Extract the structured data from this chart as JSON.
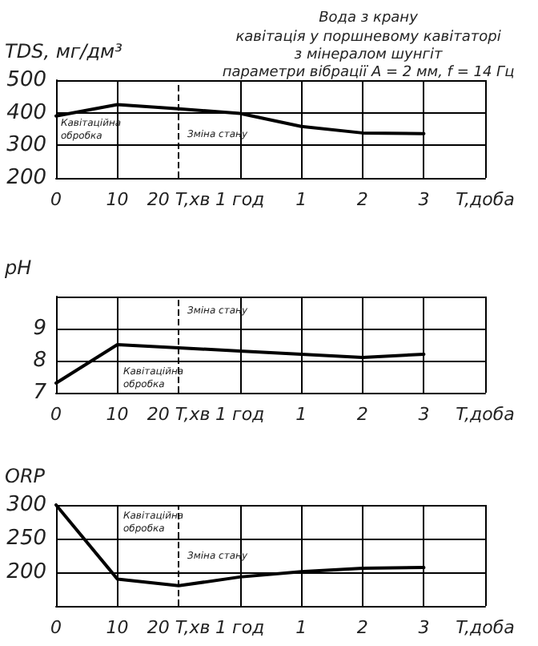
{
  "chart_data": [
    {
      "type": "line",
      "title": "Вода з крану",
      "subtitle": "кавітація у поршневому кавітаторі\nз мінералом шунгіт\nпараметри вібрації A = 2 мм, f = 14 Гц",
      "ylabel": "TDS, мг/дм³",
      "xlabel": "T,доба",
      "categories": [
        "0",
        "10",
        "20 T,хв",
        "1 год",
        "1",
        "2",
        "3",
        null
      ],
      "values": [
        390,
        425,
        412,
        398,
        358,
        338,
        336,
        null
      ],
      "color": "#000000",
      "marker": "none",
      "line_style": "solid",
      "ylim": [
        200,
        500
      ],
      "yticks": [
        200,
        300,
        400,
        500
      ],
      "grid": true,
      "ref_lines": [
        {
          "axis": "x",
          "value": "20 T,хв",
          "line_style": "dashed",
          "color": "#000000"
        }
      ],
      "annotations": [
        "Кавітаційна обробка",
        "Зміна стану"
      ]
    },
    {
      "type": "line",
      "ylabel": "pH",
      "xlabel": "T,доба",
      "categories": [
        "0",
        "10",
        "20 T,хв",
        "1 год",
        "1",
        "2",
        "3",
        null
      ],
      "values": [
        7.3,
        8.5,
        8.4,
        8.3,
        8.2,
        8.1,
        8.2,
        null
      ],
      "color": "#000000",
      "marker": "none",
      "line_style": "solid",
      "ylim": [
        7,
        10
      ],
      "yticks": [
        7,
        8,
        9
      ],
      "grid": true,
      "ref_lines": [
        {
          "axis": "x",
          "value": "20 T,хв",
          "line_style": "dashed",
          "color": "#000000"
        }
      ],
      "annotations": [
        "Зміна стану",
        "Кавітаційна обробка"
      ]
    },
    {
      "type": "line",
      "ylabel": "ORP",
      "xlabel": "T,доба",
      "categories": [
        "0",
        "10",
        "20 T,хв",
        "1 год",
        "1",
        "2",
        "3",
        null
      ],
      "values": [
        300,
        190,
        180,
        193,
        201,
        206,
        207,
        null
      ],
      "color": "#000000",
      "marker": "none",
      "line_style": "solid",
      "ylim": [
        150,
        300
      ],
      "yticks": [
        200,
        250,
        300
      ],
      "grid": true,
      "ref_lines": [
        {
          "axis": "x",
          "value": "20 T,хв",
          "line_style": "dashed",
          "color": "#000000"
        }
      ],
      "annotations": [
        "Кавітаційна обробка",
        "Зміна стану"
      ]
    }
  ]
}
